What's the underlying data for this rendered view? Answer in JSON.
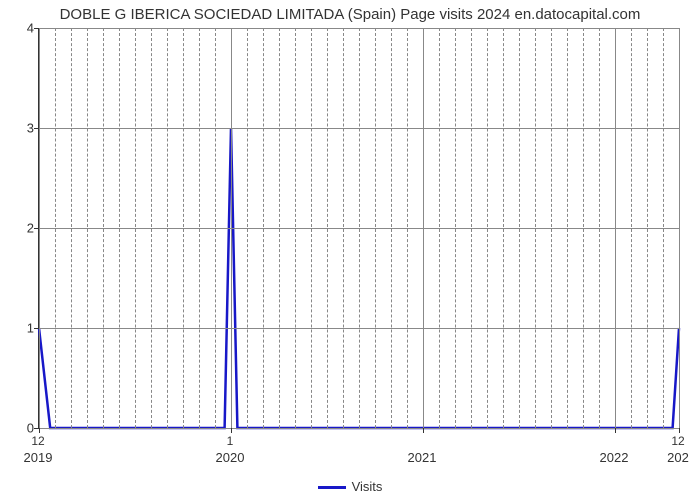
{
  "chart": {
    "type": "line",
    "title": "DOBLE G IBERICA SOCIEDAD LIMITADA (Spain) Page visits 2024 en.datocapital.com",
    "title_fontsize": 15,
    "background_color": "#ffffff",
    "grid_color": "#888888",
    "axis_color": "#333333",
    "line_color": "#1818c8",
    "line_width": 2.5,
    "x_axis": {
      "min": 0,
      "max": 40,
      "major_ticks": [
        {
          "pos": 0,
          "top_label": "12",
          "bot_label": "2019"
        },
        {
          "pos": 12,
          "top_label": "1",
          "bot_label": "2020"
        },
        {
          "pos": 24,
          "top_label": "",
          "bot_label": "2021"
        },
        {
          "pos": 36,
          "top_label": "",
          "bot_label": "2022"
        },
        {
          "pos": 40,
          "top_label": "12",
          "bot_label": "202"
        }
      ],
      "dashed_minor": [
        1,
        2,
        3,
        4,
        5,
        6,
        7,
        8,
        9,
        10,
        11,
        13,
        14,
        15,
        16,
        17,
        18,
        19,
        20,
        21,
        22,
        23,
        25,
        26,
        27,
        28,
        29,
        30,
        31,
        32,
        33,
        34,
        35,
        37,
        38,
        39
      ]
    },
    "y_axis": {
      "min": 0,
      "max": 4,
      "ticks": [
        0,
        1,
        2,
        3,
        4
      ]
    },
    "series": {
      "name": "Visits",
      "points": [
        [
          0,
          1
        ],
        [
          0.7,
          0
        ],
        [
          1,
          0
        ],
        [
          11,
          0
        ],
        [
          11.6,
          0
        ],
        [
          12,
          3
        ],
        [
          12.4,
          0
        ],
        [
          13,
          0
        ],
        [
          39,
          0
        ],
        [
          39.6,
          0
        ],
        [
          40,
          1
        ]
      ]
    },
    "legend": {
      "label": "Visits"
    }
  }
}
